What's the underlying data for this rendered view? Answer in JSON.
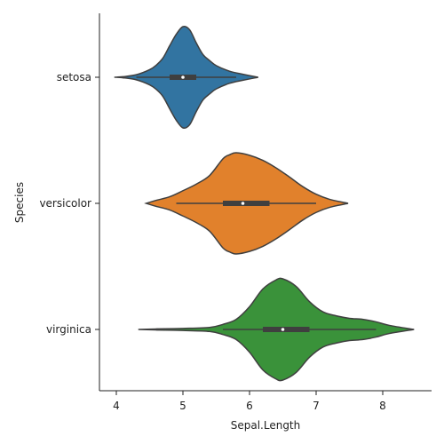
{
  "chart_data": {
    "type": "violin",
    "orientation": "horizontal",
    "xlabel": "Sepal.Length",
    "ylabel": "Species",
    "xlim": [
      3.75,
      8.75
    ],
    "x_ticks": [
      4,
      5,
      6,
      7,
      8
    ],
    "grid": false,
    "legend": "none",
    "categories": [
      "setosa",
      "versicolor",
      "virginica"
    ],
    "series": [
      {
        "color": "#3274a1",
        "kde_range": [
          3.97,
          6.13
        ],
        "density": [
          [
            3.97,
            0.0
          ],
          [
            4.1,
            0.01
          ],
          [
            4.3,
            0.05
          ],
          [
            4.5,
            0.15
          ],
          [
            4.6,
            0.24
          ],
          [
            4.7,
            0.38
          ],
          [
            4.8,
            0.62
          ],
          [
            4.9,
            0.85
          ],
          [
            5.0,
            1.0
          ],
          [
            5.1,
            0.94
          ],
          [
            5.2,
            0.68
          ],
          [
            5.3,
            0.45
          ],
          [
            5.4,
            0.33
          ],
          [
            5.5,
            0.23
          ],
          [
            5.7,
            0.12
          ],
          [
            5.9,
            0.06
          ],
          [
            6.13,
            0.0
          ]
        ],
        "min": 4.3,
        "q1": 4.8,
        "median": 5.0,
        "q3": 5.2,
        "max": 5.8
      },
      {
        "color": "#e1812c",
        "kde_range": [
          4.45,
          7.48
        ],
        "density": [
          [
            4.45,
            0.0
          ],
          [
            4.6,
            0.06
          ],
          [
            4.8,
            0.13
          ],
          [
            5.0,
            0.25
          ],
          [
            5.2,
            0.38
          ],
          [
            5.4,
            0.55
          ],
          [
            5.6,
            0.88
          ],
          [
            5.7,
            0.96
          ],
          [
            5.8,
            1.0
          ],
          [
            6.0,
            0.95
          ],
          [
            6.2,
            0.85
          ],
          [
            6.4,
            0.7
          ],
          [
            6.6,
            0.52
          ],
          [
            6.8,
            0.33
          ],
          [
            7.0,
            0.18
          ],
          [
            7.2,
            0.08
          ],
          [
            7.48,
            0.0
          ]
        ],
        "min": 4.9,
        "q1": 5.6,
        "median": 5.9,
        "q3": 6.3,
        "max": 7.0
      },
      {
        "color": "#3a923a",
        "kde_range": [
          4.33,
          8.47
        ],
        "density": [
          [
            4.33,
            0.0
          ],
          [
            4.6,
            0.01
          ],
          [
            5.0,
            0.02
          ],
          [
            5.4,
            0.04
          ],
          [
            5.6,
            0.1
          ],
          [
            5.8,
            0.2
          ],
          [
            6.0,
            0.45
          ],
          [
            6.2,
            0.8
          ],
          [
            6.4,
            0.98
          ],
          [
            6.5,
            1.0
          ],
          [
            6.7,
            0.85
          ],
          [
            6.9,
            0.55
          ],
          [
            7.1,
            0.35
          ],
          [
            7.3,
            0.27
          ],
          [
            7.5,
            0.22
          ],
          [
            7.7,
            0.2
          ],
          [
            7.9,
            0.15
          ],
          [
            8.1,
            0.08
          ],
          [
            8.47,
            0.0
          ]
        ],
        "min": 5.6,
        "q1": 6.2,
        "median": 6.5,
        "q3": 6.9,
        "max": 7.9
      }
    ]
  }
}
